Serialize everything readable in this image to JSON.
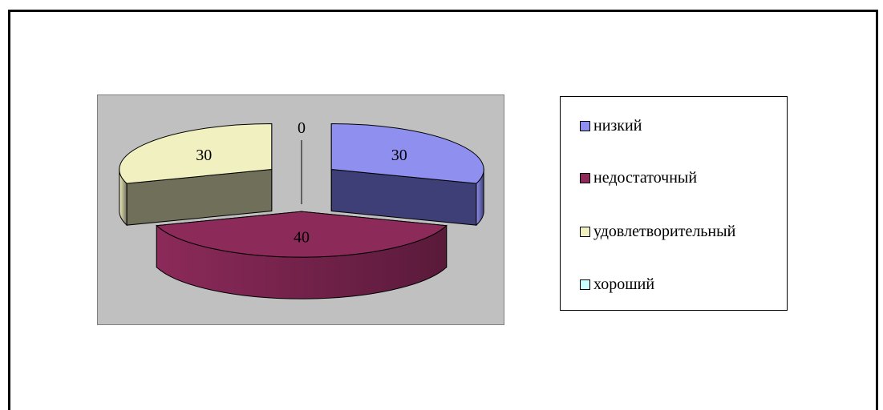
{
  "chart_data": {
    "type": "pie",
    "subtype": "3d-exploded",
    "categories": [
      "низкий",
      "недостаточный",
      "удовлетворительный",
      "хороший"
    ],
    "values": [
      30,
      40,
      30,
      0
    ],
    "data_labels": [
      "30",
      "40",
      "30",
      "0"
    ],
    "colors": [
      "#8f8fef",
      "#8c2a5a",
      "#f0f0c0",
      "#ccffff"
    ],
    "side_colors": [
      "#3f3f77",
      "#5a1a3a",
      "#70705a",
      "#88aaaa"
    ],
    "legend_position": "right",
    "plot_background": "#c0c0c0"
  }
}
